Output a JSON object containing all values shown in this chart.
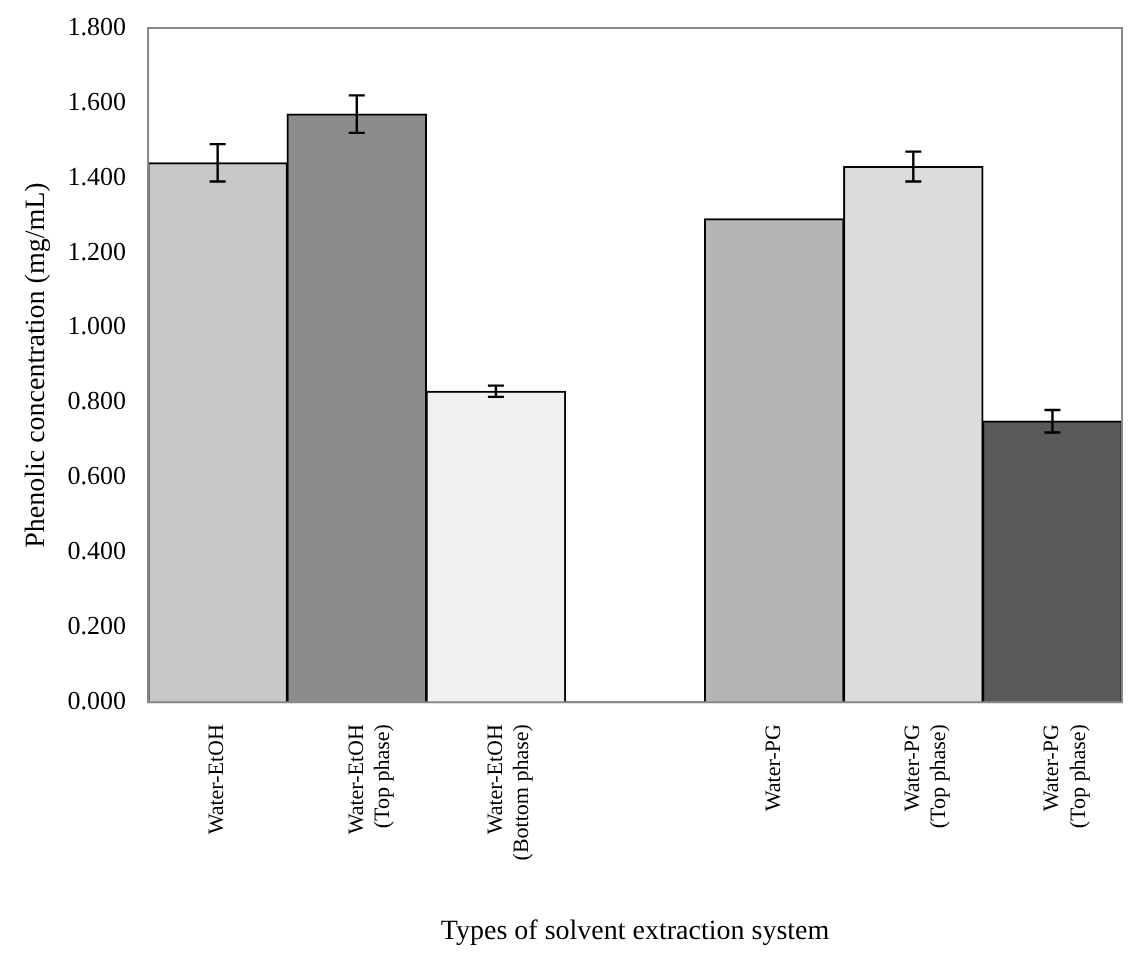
{
  "chart_data": {
    "type": "bar",
    "xlabel": "Types of solvent extraction system",
    "ylabel": "Phenolic concentration (mg/mL)",
    "categories": [
      "Water-EtOH",
      "Water-EtOH\n(Top phase)",
      "Water-EtOH\n(Bottom phase)",
      null,
      "Water-PG",
      "Water-PG\n(Top phase)",
      "Water-PG\n(Top phase)"
    ],
    "values": [
      1.44,
      1.57,
      0.83,
      null,
      1.29,
      1.43,
      0.75
    ],
    "errors": [
      0.05,
      0.05,
      0.015,
      null,
      null,
      0.04,
      0.03
    ],
    "colors": [
      "#c8c8c8",
      "#8c8c8c",
      "#f0f0f0",
      "#ffffff",
      "#b4b4b4",
      "#dcdcdc",
      "#5a5a5a"
    ],
    "ylim": [
      0,
      1.8
    ],
    "yticks": [
      {
        "value": 0,
        "label": "0.000"
      },
      {
        "value": 0.2,
        "label": "0.200"
      },
      {
        "value": 0.4,
        "label": "0.400"
      },
      {
        "value": 0.6,
        "label": "0.600"
      },
      {
        "value": 0.8,
        "label": "0.800"
      },
      {
        "value": 1,
        "label": "1.000"
      },
      {
        "value": 1.2,
        "label": "1.200"
      },
      {
        "value": 1.4,
        "label": "1.400"
      },
      {
        "value": 1.6,
        "label": "1.600"
      },
      {
        "value": 1.8,
        "label": "1.800"
      }
    ],
    "grid": false,
    "legend": false
  }
}
